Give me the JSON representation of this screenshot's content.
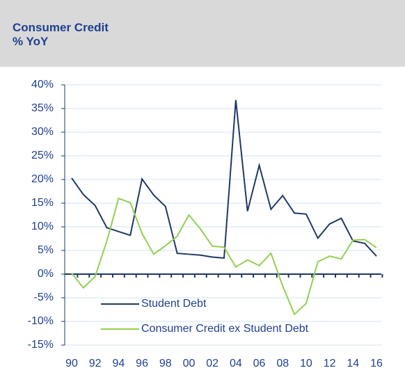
{
  "chart_data": {
    "type": "line",
    "title": "Consumer Credit",
    "subtitle": "% YoY",
    "categories": [
      "90",
      null,
      "92",
      null,
      "94",
      null,
      "96",
      null,
      "98",
      null,
      "00",
      null,
      "02",
      null,
      "04",
      null,
      "06",
      null,
      "08",
      null,
      "10",
      null,
      "12",
      null,
      "14",
      null,
      "16"
    ],
    "series": [
      {
        "name": "Student Debt",
        "color": "#1f3864",
        "values": [
          20.3,
          16.8,
          14.5,
          9.8,
          9.0,
          8.2,
          20.1,
          16.7,
          14.3,
          4.4,
          4.2,
          4.0,
          3.6,
          3.4,
          36.8,
          13.3,
          23.0,
          13.7,
          16.6,
          12.9,
          12.7,
          7.6,
          10.6,
          11.8,
          7.0,
          6.5,
          3.8
        ]
      },
      {
        "name": "Consumer Credit ex Student Debt",
        "color": "#92d050",
        "values": [
          0.2,
          -2.9,
          -0.5,
          7.0,
          16.0,
          15.1,
          8.6,
          4.2,
          6.0,
          8.0,
          12.5,
          9.5,
          5.9,
          5.7,
          1.5,
          3.0,
          1.8,
          4.4,
          -2.5,
          -8.5,
          -6.2,
          2.6,
          3.8,
          3.2,
          7.2,
          7.3,
          5.6
        ]
      }
    ],
    "ylim": [
      -15,
      40
    ],
    "yticks": [
      {
        "value": -15,
        "label": "-15%"
      },
      {
        "value": -10,
        "label": "-10%"
      },
      {
        "value": -5,
        "label": "-5%"
      },
      {
        "value": 0,
        "label": "0%"
      },
      {
        "value": 5,
        "label": "5%"
      },
      {
        "value": 10,
        "label": "10%"
      },
      {
        "value": 15,
        "label": "15%"
      },
      {
        "value": 20,
        "label": "20%"
      },
      {
        "value": 25,
        "label": "25%"
      },
      {
        "value": 30,
        "label": "30%"
      },
      {
        "value": 35,
        "label": "35%"
      },
      {
        "value": 40,
        "label": "40%"
      }
    ],
    "grid": true,
    "legend": "lower left"
  }
}
